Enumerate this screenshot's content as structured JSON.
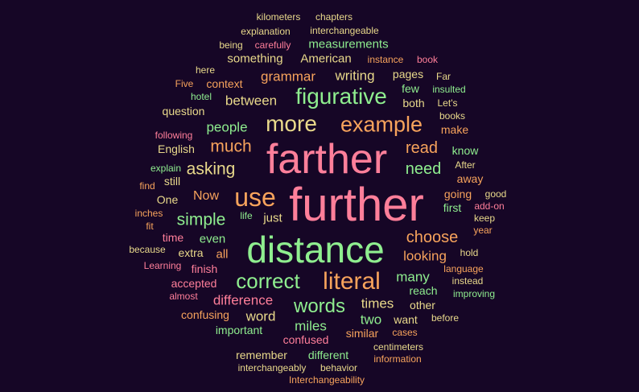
{
  "palette": {
    "background": "#160626",
    "pink": "#ff7f9a",
    "orange": "#f7a35c",
    "green": "#8fee8f",
    "yellow": "#e9d98b"
  },
  "words": [
    {
      "text": "further",
      "color": "pink"
    },
    {
      "text": "farther",
      "color": "pink"
    },
    {
      "text": "distance",
      "color": "green"
    },
    {
      "text": "use",
      "color": "orange"
    },
    {
      "text": "more",
      "color": "yellow"
    },
    {
      "text": "example",
      "color": "orange"
    },
    {
      "text": "figurative",
      "color": "green"
    },
    {
      "text": "literal",
      "color": "orange"
    },
    {
      "text": "correct",
      "color": "green"
    },
    {
      "text": "words",
      "color": "green"
    },
    {
      "text": "asking",
      "color": "yellow"
    },
    {
      "text": "much",
      "color": "orange"
    },
    {
      "text": "simple",
      "color": "green"
    },
    {
      "text": "choose",
      "color": "orange"
    },
    {
      "text": "need",
      "color": "green"
    },
    {
      "text": "read",
      "color": "orange"
    },
    {
      "text": "people",
      "color": "green"
    },
    {
      "text": "between",
      "color": "yellow"
    },
    {
      "text": "grammar",
      "color": "orange"
    },
    {
      "text": "writing",
      "color": "yellow"
    },
    {
      "text": "looking",
      "color": "orange"
    },
    {
      "text": "difference",
      "color": "pink"
    },
    {
      "text": "times",
      "color": "yellow"
    },
    {
      "text": "miles",
      "color": "green"
    },
    {
      "text": "many",
      "color": "green"
    },
    {
      "text": "two",
      "color": "green"
    },
    {
      "text": "word",
      "color": "yellow"
    },
    {
      "text": "measurements",
      "color": "green"
    },
    {
      "text": "something",
      "color": "yellow"
    },
    {
      "text": "American",
      "color": "yellow"
    },
    {
      "text": "context",
      "color": "orange"
    },
    {
      "text": "question",
      "color": "yellow"
    },
    {
      "text": "English",
      "color": "yellow"
    },
    {
      "text": "Now",
      "color": "orange"
    },
    {
      "text": "just",
      "color": "yellow"
    },
    {
      "text": "even",
      "color": "green"
    },
    {
      "text": "time",
      "color": "pink"
    },
    {
      "text": "extra",
      "color": "yellow"
    },
    {
      "text": "all",
      "color": "orange"
    },
    {
      "text": "finish",
      "color": "pink"
    },
    {
      "text": "accepted",
      "color": "pink"
    },
    {
      "text": "confusing",
      "color": "orange"
    },
    {
      "text": "important",
      "color": "green"
    },
    {
      "text": "confused",
      "color": "pink"
    },
    {
      "text": "similar",
      "color": "orange"
    },
    {
      "text": "remember",
      "color": "yellow"
    },
    {
      "text": "different",
      "color": "green"
    },
    {
      "text": "want",
      "color": "yellow"
    },
    {
      "text": "reach",
      "color": "green"
    },
    {
      "text": "other",
      "color": "yellow"
    },
    {
      "text": "going",
      "color": "orange"
    },
    {
      "text": "first",
      "color": "green"
    },
    {
      "text": "away",
      "color": "orange"
    },
    {
      "text": "know",
      "color": "green"
    },
    {
      "text": "pages",
      "color": "yellow"
    },
    {
      "text": "few",
      "color": "green"
    },
    {
      "text": "both",
      "color": "yellow"
    },
    {
      "text": "still",
      "color": "yellow"
    },
    {
      "text": "One",
      "color": "yellow"
    },
    {
      "text": "kilometers",
      "color": "yellow"
    },
    {
      "text": "chapters",
      "color": "yellow"
    },
    {
      "text": "explanation",
      "color": "yellow"
    },
    {
      "text": "interchangeable",
      "color": "yellow"
    },
    {
      "text": "being",
      "color": "yellow"
    },
    {
      "text": "carefully",
      "color": "pink"
    },
    {
      "text": "instance",
      "color": "orange"
    },
    {
      "text": "book",
      "color": "pink"
    },
    {
      "text": "here",
      "color": "yellow"
    },
    {
      "text": "Far",
      "color": "yellow"
    },
    {
      "text": "Five",
      "color": "orange"
    },
    {
      "text": "insulted",
      "color": "green"
    },
    {
      "text": "hotel",
      "color": "green"
    },
    {
      "text": "Let's",
      "color": "yellow"
    },
    {
      "text": "books",
      "color": "yellow"
    },
    {
      "text": "make",
      "color": "orange"
    },
    {
      "text": "following",
      "color": "pink"
    },
    {
      "text": "explain",
      "color": "green"
    },
    {
      "text": "After",
      "color": "yellow"
    },
    {
      "text": "find",
      "color": "orange"
    },
    {
      "text": "good",
      "color": "yellow"
    },
    {
      "text": "add-on",
      "color": "pink"
    },
    {
      "text": "inches",
      "color": "orange"
    },
    {
      "text": "life",
      "color": "green"
    },
    {
      "text": "keep",
      "color": "yellow"
    },
    {
      "text": "fit",
      "color": "orange"
    },
    {
      "text": "year",
      "color": "orange"
    },
    {
      "text": "because",
      "color": "yellow"
    },
    {
      "text": "hold",
      "color": "yellow"
    },
    {
      "text": "Learning",
      "color": "pink"
    },
    {
      "text": "language",
      "color": "orange"
    },
    {
      "text": "instead",
      "color": "yellow"
    },
    {
      "text": "almost",
      "color": "pink"
    },
    {
      "text": "improving",
      "color": "green"
    },
    {
      "text": "before",
      "color": "yellow"
    },
    {
      "text": "cases",
      "color": "orange"
    },
    {
      "text": "centimeters",
      "color": "yellow"
    },
    {
      "text": "information",
      "color": "orange"
    },
    {
      "text": "interchangeably",
      "color": "yellow"
    },
    {
      "text": "behavior",
      "color": "yellow"
    },
    {
      "text": "Interchangeability",
      "color": "orange"
    }
  ]
}
